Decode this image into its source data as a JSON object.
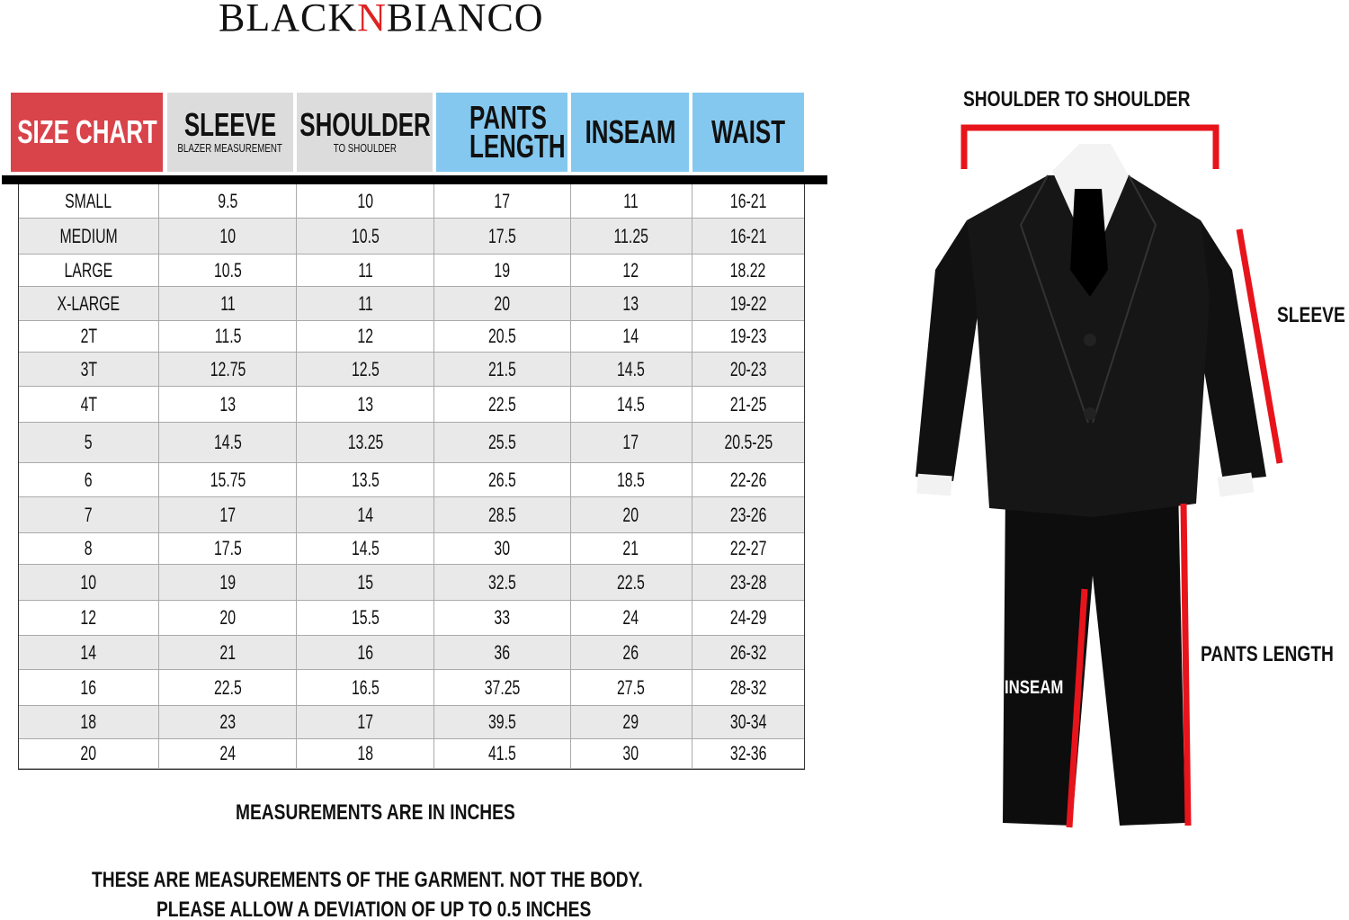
{
  "brand": {
    "prefix": "BLACK",
    "accent": "N",
    "suffix": "BIANCO"
  },
  "header": [
    {
      "main": "SIZE CHART",
      "sub": "",
      "bg": "#d9434a",
      "color": "#ffffff"
    },
    {
      "main": "SLEEVE",
      "sub": "BLAZER MEASUREMENT",
      "bg": "#dcdcdc",
      "color": "#111111"
    },
    {
      "main": "SHOULDER",
      "sub": "TO SHOULDER",
      "bg": "#dcdcdc",
      "color": "#111111"
    },
    {
      "main": "PANTS LENGTH",
      "sub": "",
      "bg": "#84c8ef",
      "color": "#111111"
    },
    {
      "main": "INSEAM",
      "sub": "",
      "bg": "#84c8ef",
      "color": "#111111"
    },
    {
      "main": "WAIST",
      "sub": "",
      "bg": "#84c8ef",
      "color": "#111111"
    }
  ],
  "rows": [
    [
      "SMALL",
      "9.5",
      "10",
      "17",
      "11",
      "16-21"
    ],
    [
      "MEDIUM",
      "10",
      "10.5",
      "17.5",
      "11.25",
      "16-21"
    ],
    [
      "LARGE",
      "10.5",
      "11",
      "19",
      "12",
      "18.22"
    ],
    [
      "X-LARGE",
      "11",
      "11",
      "20",
      "13",
      "19-22"
    ],
    [
      "2T",
      "11.5",
      "12",
      "20.5",
      "14",
      "19-23"
    ],
    [
      "3T",
      "12.75",
      "12.5",
      "21.5",
      "14.5",
      "20-23"
    ],
    [
      "4T",
      "13",
      "13",
      "22.5",
      "14.5",
      "21-25"
    ],
    [
      "5",
      "14.5",
      "13.25",
      "25.5",
      "17",
      "20.5-25"
    ],
    [
      "6",
      "15.75",
      "13.5",
      "26.5",
      "18.5",
      "22-26"
    ],
    [
      "7",
      "17",
      "14",
      "28.5",
      "20",
      "23-26"
    ],
    [
      "8",
      "17.5",
      "14.5",
      "30",
      "21",
      "22-27"
    ],
    [
      "10",
      "19",
      "15",
      "32.5",
      "22.5",
      "23-28"
    ],
    [
      "12",
      "20",
      "15.5",
      "33",
      "24",
      "24-29"
    ],
    [
      "14",
      "21",
      "16",
      "36",
      "26",
      "26-32"
    ],
    [
      "16",
      "22.5",
      "16.5",
      "37.25",
      "27.5",
      "28-32"
    ],
    [
      "18",
      "23",
      "17",
      "39.5",
      "29",
      "30-34"
    ],
    [
      "20",
      "24",
      "18",
      "41.5",
      "30",
      "32-36"
    ]
  ],
  "notes": {
    "units": "MEASUREMENTS ARE IN INCHES",
    "garment": "THESE ARE MEASUREMENTS OF THE GARMENT. NOT THE BODY.",
    "deviation": "PLEASE ALLOW A DEVIATION OF UP TO 0.5 INCHES"
  },
  "diagram": {
    "shoulder": "SHOULDER TO SHOULDER",
    "sleeve": "SLEEVE",
    "pants_length": "PANTS LENGTH",
    "inseam": "INSEAM",
    "marker_color": "#e8141b"
  }
}
